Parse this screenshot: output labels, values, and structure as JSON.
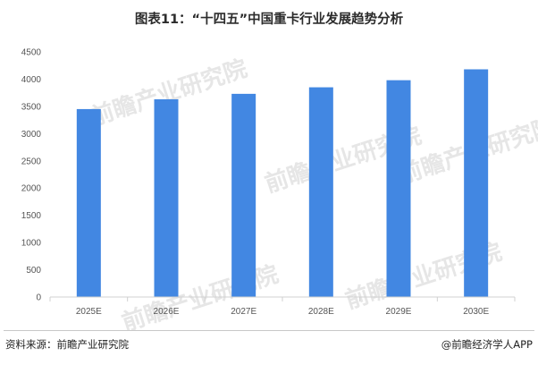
{
  "title": "图表11：“十四五”中国重卡行业发展趋势分析",
  "footer": {
    "source": "资料来源：前瞻产业研究院",
    "brand": "@前瞻经济学人APP"
  },
  "watermark": "前瞻产业研究院",
  "colors": {
    "bar": "#4287e2",
    "axis": "#d0d0d0"
  },
  "chart_data": {
    "type": "bar",
    "categories": [
      "2025E",
      "2026E",
      "2027E",
      "2028E",
      "2029E",
      "2030E"
    ],
    "values": [
      3450,
      3630,
      3730,
      3850,
      3980,
      4180
    ],
    "ylim": [
      0,
      4500
    ],
    "yticks": [
      0,
      500,
      1000,
      1500,
      2000,
      2500,
      3000,
      3500,
      4000,
      4500
    ],
    "grid": false,
    "legend": "none"
  }
}
